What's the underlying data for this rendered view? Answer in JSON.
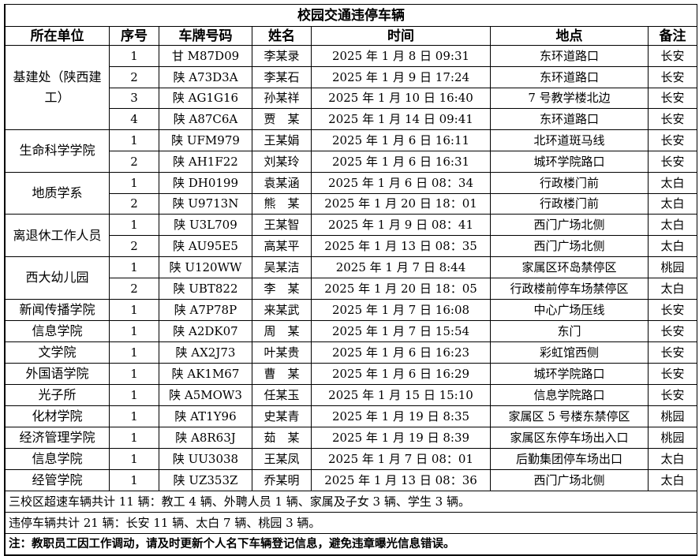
{
  "title": "校园交通违停车辆",
  "headers": [
    "所在单位",
    "序号",
    "车牌号码",
    "姓名",
    "时间",
    "地点",
    "备注"
  ],
  "groups": [
    {
      "unit": "基建处（陕西建工）",
      "rows": [
        [
          "1",
          "甘 M87D09",
          "李某录",
          "2025 年 1 月 8 日 09:31",
          "东环道路口",
          "长安"
        ],
        [
          "2",
          "陕 A73D3A",
          "李某石",
          "2025 年 1 月 9 日 17:24",
          "东环道路口",
          "长安"
        ],
        [
          "3",
          "陕 AG1G16",
          "孙某祥",
          "2025 年 1 月 10 日 16:40",
          "7 号教学楼北边",
          "长安"
        ],
        [
          "4",
          "陕 A87C6A",
          "贾　某",
          "2025 年 1 月 14 日 09:41",
          "东环道路口",
          "长安"
        ]
      ]
    },
    {
      "unit": "生命科学学院",
      "rows": [
        [
          "1",
          "陕 UFM979",
          "王某娟",
          "2025 年 1 月 6 日 16:11",
          "北环道斑马线",
          "长安"
        ],
        [
          "2",
          "陕 AH1F22",
          "刘某玲",
          "2025 年 1 月 6 日 16:31",
          "城环学院路口",
          "长安"
        ]
      ]
    },
    {
      "unit": "地质学系",
      "rows": [
        [
          "1",
          "陕 DH0199",
          "袁某涵",
          "2025 年 1 月 6 日 08：34",
          "行政楼门前",
          "太白"
        ],
        [
          "2",
          "陕 U9713N",
          "熊　某",
          "2025 年 1 月 20 日 18：01",
          "行政楼门前",
          "太白"
        ]
      ]
    },
    {
      "unit": "离退休工作人员",
      "rows": [
        [
          "1",
          "陕 U3L709",
          "王某智",
          "2025 年 1 月 9 日 08：41",
          "西门广场北侧",
          "太白"
        ],
        [
          "2",
          "陕 AU95E5",
          "高某平",
          "2025 年 1 月 13 日 08：35",
          "西门广场北侧",
          "太白"
        ]
      ]
    },
    {
      "unit": "西大幼儿园",
      "rows": [
        [
          "1",
          "陕 U120WW",
          "吴某洁",
          "2025 年 1 月 7 日 8:44",
          "家属区环岛禁停区",
          "桃园"
        ],
        [
          "2",
          "陕 UBT822",
          "李　某",
          "2025 年 1 月 20 日 18：05",
          "行政楼前停车场禁停区",
          "太白"
        ]
      ]
    },
    {
      "unit": "新闻传播学院",
      "rows": [
        [
          "1",
          "陕 A7P78P",
          "来某武",
          "2025 年 1 月 7 日 16:08",
          "中心广场压线",
          "长安"
        ]
      ]
    },
    {
      "unit": "信息学院",
      "rows": [
        [
          "1",
          "陕 A2DK07",
          "周　某",
          "2025 年 1 月 7 日 15:54",
          "东门",
          "长安"
        ]
      ]
    },
    {
      "unit": "文学院",
      "rows": [
        [
          "1",
          "陕 AX2J73",
          "叶某贵",
          "2025 年 1 月 6 日 16:23",
          "彩虹馆西侧",
          "长安"
        ]
      ]
    },
    {
      "unit": "外国语学院",
      "rows": [
        [
          "1",
          "陕 AK1M67",
          "曹　某",
          "2025 年 1 月 6 日 16:29",
          "城环学院路口",
          "长安"
        ]
      ]
    },
    {
      "unit": "光子所",
      "rows": [
        [
          "1",
          "陕 A5MOW3",
          "任某玉",
          "2025 年 1 月 15 日 15:10",
          "信息学院路口",
          "长安"
        ]
      ]
    },
    {
      "unit": "化材学院",
      "rows": [
        [
          "1",
          "陕 AT1Y96",
          "史某青",
          "2025 年 1 月 19 日 8:35",
          "家属区 5 号楼东禁停区",
          "桃园"
        ]
      ]
    },
    {
      "unit": "经济管理学院",
      "rows": [
        [
          "1",
          "陕 A8R63J",
          "茹　某",
          "2025 年 1 月 19 日 8:39",
          "家属区东停车场出入口",
          "桃园"
        ]
      ]
    },
    {
      "unit": "信息学院",
      "rows": [
        [
          "1",
          "陕 UU3038",
          "王某凤",
          "2025 年 1 月 7 日 08：01",
          "后勤集团停车场出口",
          "太白"
        ]
      ]
    },
    {
      "unit": "经管学院",
      "rows": [
        [
          "1",
          "陕 UZ353Z",
          "乔某明",
          "2025 年 1 月 13 日 08：36",
          "西门广场北侧",
          "太白"
        ]
      ]
    }
  ],
  "footer": {
    "line1": "三校区超速车辆共计 11 辆：教工 4 辆、外聘人员 1 辆、家属及子女 3 辆、学生 3 辆。",
    "line2": "违停车辆共计 21 辆：长安 11 辆、太白 7 辆、桃园 3 辆。",
    "note": "注：教职员工因工作调动，请及时更新个人名下车辆登记信息，避免违章曝光信息错误。"
  }
}
